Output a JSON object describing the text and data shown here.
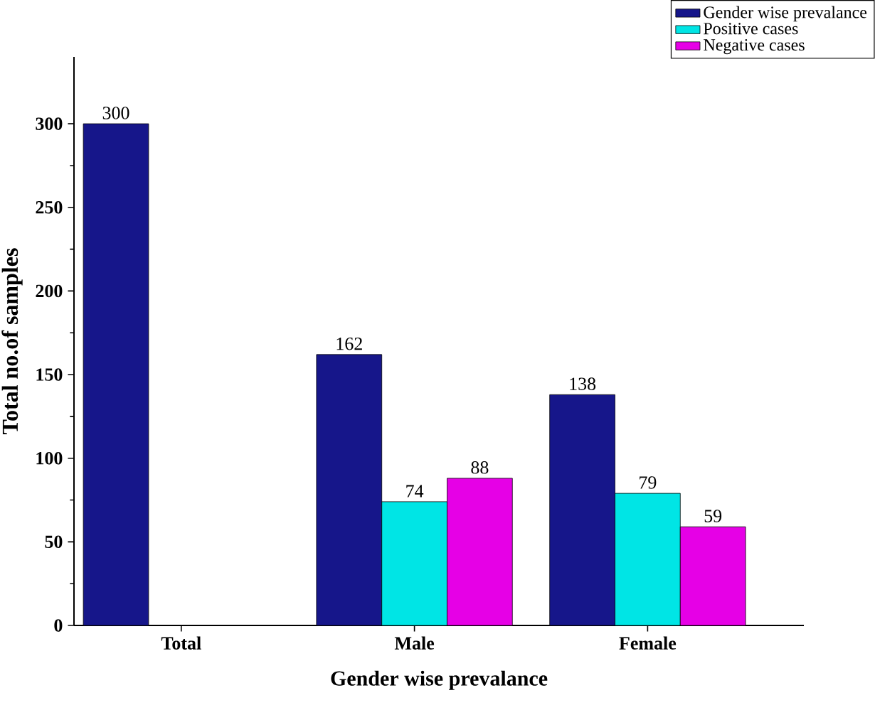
{
  "chart_data": {
    "type": "bar",
    "xlabel": "Gender wise prevalance",
    "ylabel": "Total no.of samples",
    "categories": [
      "Total",
      "Male",
      "Female"
    ],
    "series": [
      {
        "name": "Gender wise prevalance",
        "color": "#16168a",
        "values": [
          300,
          162,
          138
        ]
      },
      {
        "name": "Positive cases",
        "color": "#00e5e5",
        "values": [
          null,
          74,
          79
        ]
      },
      {
        "name": "Negative cases",
        "color": "#e600e6",
        "values": [
          null,
          88,
          59
        ]
      }
    ],
    "ylim": [
      0,
      340
    ],
    "yticks": [
      0,
      50,
      100,
      150,
      200,
      250,
      300
    ],
    "data_labels": true,
    "legend": "top right",
    "grid": false
  }
}
